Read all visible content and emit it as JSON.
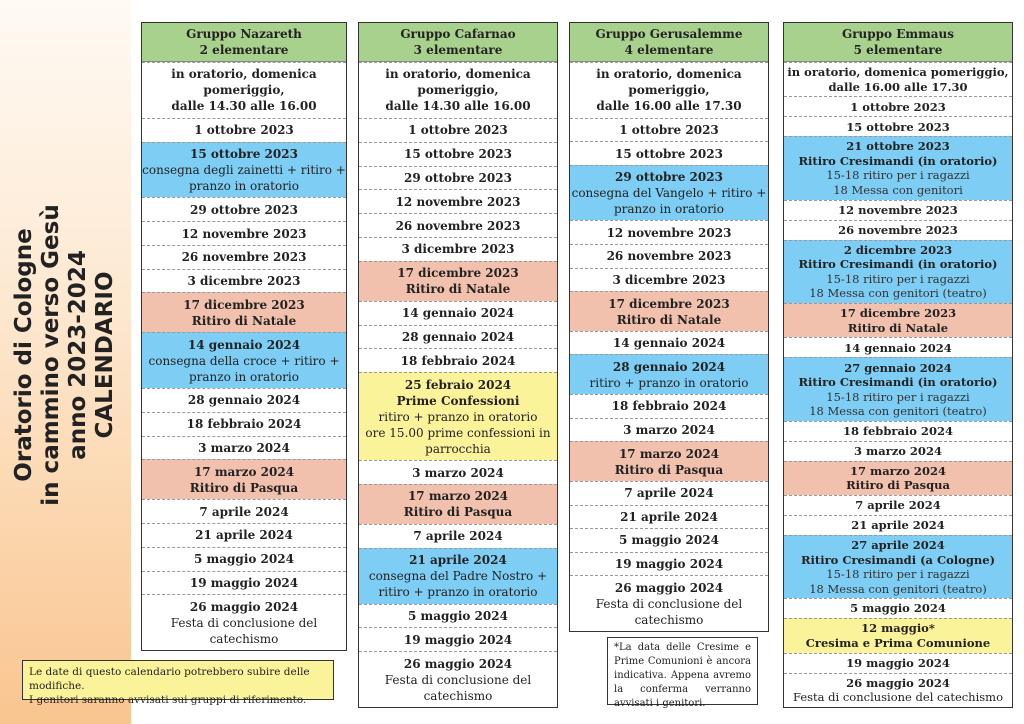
{
  "banner": {
    "lines": [
      "Oratorio di Cologne",
      "in cammino verso Gesù",
      "anno 2023-2024",
      "CALENDARIO"
    ]
  },
  "note_left": [
    "Le date di questo calendario potrebbero subire delle modifiche.",
    "I genitori saranno avvisati sui gruppi di riferimento."
  ],
  "note_right": "*La data delle Cresime e Prime Comunioni è ancora indicativa. Appena avremo la conferma verranno avvisati i genitori.",
  "colors": {
    "header": "#a9d18e",
    "blue": "#7ecdf4",
    "pink": "#f2c1ae",
    "yellow": "#fbf39a"
  },
  "groups": [
    {
      "name": "Gruppo Nazareth",
      "grade": "2 elementare",
      "rows": [
        {
          "color": "white",
          "info": true,
          "lines": [
            "in oratorio, domenica",
            "pomeriggio,",
            "dalle 14.30 alle 16.00"
          ]
        },
        {
          "color": "white",
          "title": "1 ottobre 2023"
        },
        {
          "color": "blue",
          "title": "15 ottobre 2023",
          "lines": [
            "consegna degli zainetti + ritiro +",
            "pranzo in oratorio"
          ]
        },
        {
          "color": "white",
          "title": "29 ottobre 2023"
        },
        {
          "color": "white",
          "title": "12 novembre 2023"
        },
        {
          "color": "white",
          "title": "26 novembre 2023"
        },
        {
          "color": "white",
          "title": "3 dicembre 2023"
        },
        {
          "color": "pink",
          "title": "17 dicembre 2023",
          "sub": "Ritiro di Natale"
        },
        {
          "color": "blue",
          "title": "14 gennaio 2024",
          "lines": [
            "consegna della croce + ritiro +",
            "pranzo in oratorio"
          ]
        },
        {
          "color": "white",
          "title": "28 gennaio 2024"
        },
        {
          "color": "white",
          "title": "18 febbraio 2024"
        },
        {
          "color": "white",
          "title": "3 marzo 2024"
        },
        {
          "color": "pink",
          "title": "17 marzo 2024",
          "sub": "Ritiro di Pasqua"
        },
        {
          "color": "white",
          "title": "7 aprile 2024"
        },
        {
          "color": "white",
          "title": "21 aprile 2024"
        },
        {
          "color": "white",
          "title": "5 maggio 2024"
        },
        {
          "color": "white",
          "title": "19 maggio 2024"
        },
        {
          "color": "white",
          "title": "26 maggio 2024",
          "lines": [
            "Festa di conclusione del",
            "catechismo"
          ]
        }
      ]
    },
    {
      "name": "Gruppo Cafarnao",
      "grade": "3 elementare",
      "rows": [
        {
          "color": "white",
          "info": true,
          "lines": [
            "in oratorio, domenica",
            "pomeriggio,",
            "dalle 14.30 alle 16.00"
          ]
        },
        {
          "color": "white",
          "title": "1 ottobre 2023"
        },
        {
          "color": "white",
          "title": "15 ottobre 2023"
        },
        {
          "color": "white",
          "title": "29 ottobre 2023"
        },
        {
          "color": "white",
          "title": "12 novembre 2023"
        },
        {
          "color": "white",
          "title": "26 novembre 2023"
        },
        {
          "color": "white",
          "title": "3 dicembre 2023"
        },
        {
          "color": "pink",
          "title": "17 dicembre 2023",
          "sub": "Ritiro di Natale"
        },
        {
          "color": "white",
          "title": "14 gennaio 2024"
        },
        {
          "color": "white",
          "title": "28 gennaio 2024"
        },
        {
          "color": "white",
          "title": "18 febbraio 2024"
        },
        {
          "color": "yellow",
          "title": "25 febraio 2024",
          "sub": "Prime Confessioni",
          "lines": [
            "ritiro + pranzo in oratorio",
            "ore 15.00 prime confessioni in",
            "parrocchia"
          ]
        },
        {
          "color": "white",
          "title": "3 marzo 2024"
        },
        {
          "color": "pink",
          "title": "17 marzo 2024",
          "sub": "Ritiro di Pasqua"
        },
        {
          "color": "white",
          "title": "7 aprile 2024"
        },
        {
          "color": "blue",
          "title": "21 aprile 2024",
          "lines": [
            "consegna del Padre Nostro +",
            "ritiro + pranzo in oratorio"
          ]
        },
        {
          "color": "white",
          "title": "5 maggio 2024"
        },
        {
          "color": "white",
          "title": "19 maggio 2024"
        },
        {
          "color": "white",
          "title": "26 maggio 2024",
          "lines": [
            "Festa di conclusione del",
            "catechismo"
          ]
        }
      ]
    },
    {
      "name": "Gruppo Gerusalemme",
      "grade": "4 elementare",
      "rows": [
        {
          "color": "white",
          "info": true,
          "lines": [
            "in oratorio, domenica",
            "pomeriggio,",
            "dalle 16.00 alle 17.30"
          ]
        },
        {
          "color": "white",
          "title": "1 ottobre 2023"
        },
        {
          "color": "white",
          "title": "15 ottobre 2023"
        },
        {
          "color": "blue",
          "title": "29 ottobre 2023",
          "lines": [
            "consegna del Vangelo +  ritiro +",
            "pranzo in oratorio"
          ]
        },
        {
          "color": "white",
          "title": "12 novembre 2023"
        },
        {
          "color": "white",
          "title": "26 novembre 2023"
        },
        {
          "color": "white",
          "title": "3 dicembre 2023"
        },
        {
          "color": "pink",
          "title": "17 dicembre 2023",
          "sub": "Ritiro di Natale"
        },
        {
          "color": "white",
          "title": "14 gennaio 2024"
        },
        {
          "color": "blue",
          "title": "28 gennaio 2024",
          "lines": [
            "ritiro + pranzo in oratorio"
          ]
        },
        {
          "color": "white",
          "title": "18 febbraio 2024"
        },
        {
          "color": "white",
          "title": "3 marzo 2024"
        },
        {
          "color": "pink",
          "title": "17 marzo 2024",
          "sub": "Ritiro di Pasqua"
        },
        {
          "color": "white",
          "title": "7 aprile 2024"
        },
        {
          "color": "white",
          "title": "21 aprile 2024"
        },
        {
          "color": "white",
          "title": "5 maggio 2024"
        },
        {
          "color": "white",
          "title": "19 maggio 2024"
        },
        {
          "color": "white",
          "title": "26 maggio 2024",
          "lines": [
            "Festa di conclusione del",
            "catechismo"
          ]
        }
      ]
    },
    {
      "name": "Gruppo Emmaus",
      "grade": "5 elementare",
      "rows": [
        {
          "color": "white",
          "info": true,
          "lines": [
            "in oratorio, domenica pomeriggio,",
            "dalle 16.00 alle 17.30"
          ]
        },
        {
          "color": "white",
          "title": "1 ottobre 2023"
        },
        {
          "color": "white",
          "title": "15 ottobre 2023"
        },
        {
          "color": "blue",
          "title": "21 ottobre 2023",
          "sub": "Ritiro Cresimandi (in oratorio)",
          "lines": [
            "15-18 ritiro per i ragazzi",
            "18 Messa con genitori"
          ]
        },
        {
          "color": "white",
          "title": "12 novembre 2023"
        },
        {
          "color": "white",
          "title": "26 novembre 2023"
        },
        {
          "color": "blue",
          "title": "2 dicembre 2023",
          "sub": "Ritiro Cresimandi (in oratorio)",
          "lines": [
            "15-18 ritiro per i ragazzi",
            "18 Messa con genitori (teatro)"
          ]
        },
        {
          "color": "pink",
          "title": "17 dicembre 2023",
          "sub": "Ritiro di Natale"
        },
        {
          "color": "white",
          "title": "14 gennaio 2024"
        },
        {
          "color": "blue",
          "title": "27 gennaio 2024",
          "sub": "Ritiro Cresimandi (in oratorio)",
          "lines": [
            "15-18 ritiro per i ragazzi",
            "18 Messa con genitori (teatro)"
          ]
        },
        {
          "color": "white",
          "title": "18 febbraio 2024"
        },
        {
          "color": "white",
          "title": "3 marzo 2024"
        },
        {
          "color": "pink",
          "title": "17 marzo 2024",
          "sub": "Ritiro di Pasqua"
        },
        {
          "color": "white",
          "title": "7 aprile 2024"
        },
        {
          "color": "white",
          "title": "21 aprile 2024"
        },
        {
          "color": "blue",
          "title": "27 aprile 2024",
          "sub": "Ritiro Cresimandi (a Cologne)",
          "lines": [
            "15-18 ritiro per i ragazzi",
            "18 Messa con genitori (teatro)"
          ]
        },
        {
          "color": "white",
          "title": "5 maggio 2024"
        },
        {
          "color": "yellow",
          "title": "12 maggio*",
          "sub": "Cresima e Prima Comunione"
        },
        {
          "color": "white",
          "title": "19 maggio 2024"
        },
        {
          "color": "white",
          "title": "26 maggio 2024",
          "lines": [
            "Festa di conclusione del catechismo"
          ]
        }
      ]
    }
  ]
}
